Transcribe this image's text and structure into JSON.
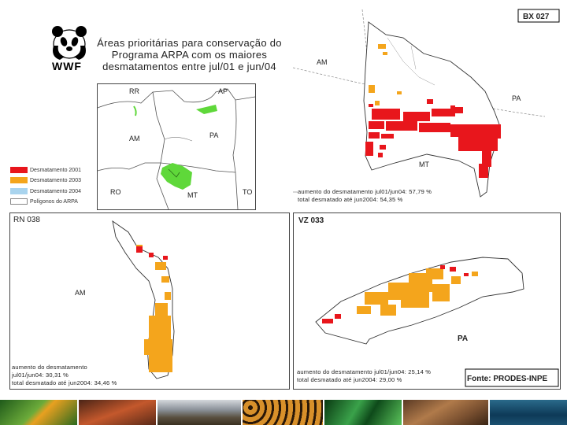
{
  "logo": {
    "text": "WWF"
  },
  "title": {
    "line1": "Áreas prioritárias para conservação do",
    "line2": "Programa ARPA com os maiores",
    "line3": "desmatamentos entre jul/01 e jun/04"
  },
  "overview_map": {
    "labels": {
      "rr": "RR",
      "ap": "AP",
      "am": "AM",
      "pa": "PA",
      "ro": "RO",
      "mt": "MT",
      "to": "TO"
    }
  },
  "legend": [
    {
      "label": "Desmatamento 2001",
      "color": "#e8161c"
    },
    {
      "label": "Desmatamento 2003",
      "color": "#f4a51c"
    },
    {
      "label": "Desmatamento 2004",
      "color": "#a9d4ee"
    },
    {
      "label": "Polígonos do ARPA",
      "color": "#ffffff"
    }
  ],
  "panel_bx": {
    "id": "BX 027",
    "labels": {
      "am": "AM",
      "pa": "PA",
      "mt": "MT"
    },
    "stat1": "aumento do desmatamento jul01/jun04: 57,79 %",
    "stat2": "total desmatado até jun2004: 54,35 %"
  },
  "panel_rn": {
    "id": "RN 038",
    "labels": {
      "am": "AM"
    },
    "stat1": "aumento do desmatamento",
    "stat2": "jul01/jun04: 30,31 %",
    "stat3": "total desmatado até jun2004: 34,46 %"
  },
  "panel_vz": {
    "id": "VZ 033",
    "labels": {
      "pa": "PA"
    },
    "stat1": "aumento do desmatamento jul01/jun04: 25,14 %",
    "stat2": "total desmatado até jun2004: 29,00 %"
  },
  "source": "Fonte: PRODES-INPE",
  "colors": {
    "red": "#e8161c",
    "orange": "#f4a51c",
    "green": "#5fd83a"
  }
}
